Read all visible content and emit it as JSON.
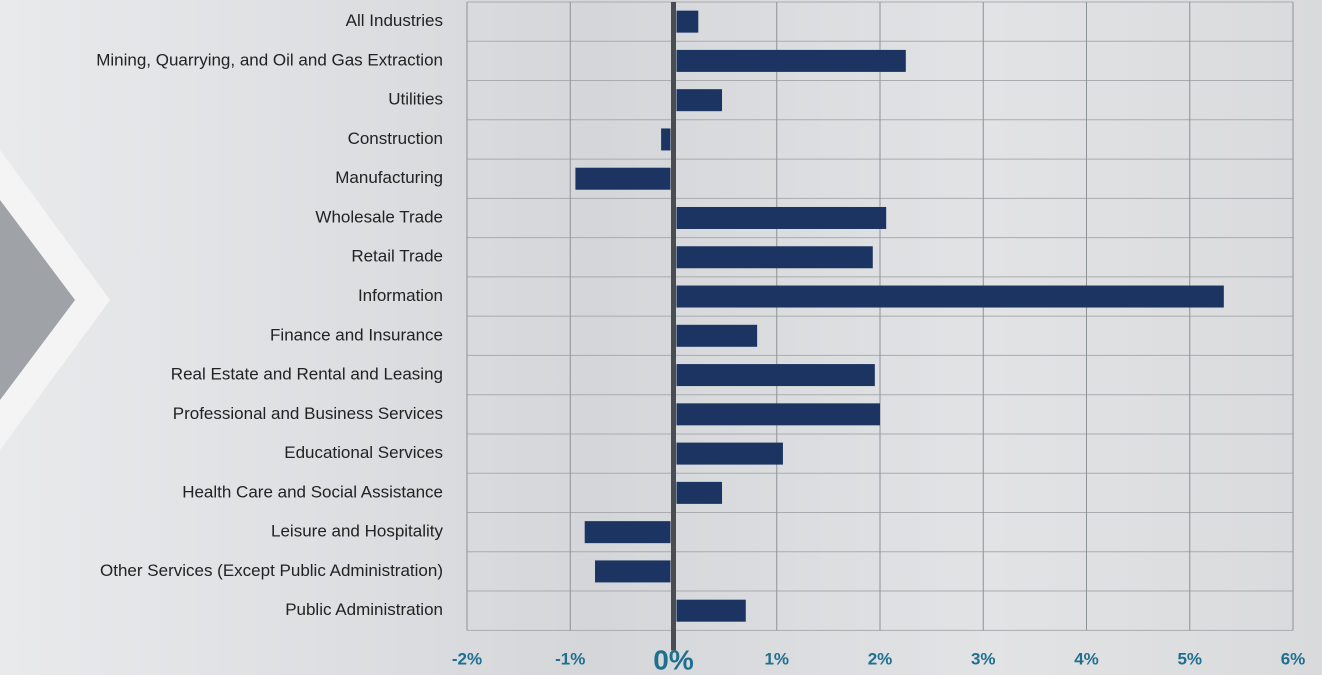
{
  "chart_data": {
    "type": "bar",
    "orientation": "horizontal",
    "categories": [
      "All Industries",
      "Mining, Quarrying, and Oil and Gas Extraction",
      "Utilities",
      "Construction",
      "Manufacturing",
      "Wholesale Trade",
      "Retail Trade",
      "Information",
      "Finance and Insurance",
      "Real Estate and Rental and Leasing",
      "Professional and Business Services",
      "Educational Services",
      "Health Care and Social Assistance",
      "Leisure and Hospitality",
      "Other Services (Except Public Administration)",
      "Public Administration"
    ],
    "values": [
      0.24,
      2.25,
      0.47,
      -0.12,
      -0.95,
      2.06,
      1.93,
      5.33,
      0.81,
      1.95,
      2.0,
      1.06,
      0.47,
      -0.86,
      -0.76,
      0.7
    ],
    "color": "#1c3461",
    "xlim": [
      -2,
      6
    ],
    "xticks": [
      {
        "value": -2,
        "label": "-2%"
      },
      {
        "value": -1,
        "label": "-1%"
      },
      {
        "value": 0,
        "label": "0%"
      },
      {
        "value": 1,
        "label": "1%"
      },
      {
        "value": 2,
        "label": "2%"
      },
      {
        "value": 3,
        "label": "3%"
      },
      {
        "value": 4,
        "label": "4%"
      },
      {
        "value": 5,
        "label": "5%"
      },
      {
        "value": 6,
        "label": "6%"
      }
    ],
    "grid": true
  }
}
